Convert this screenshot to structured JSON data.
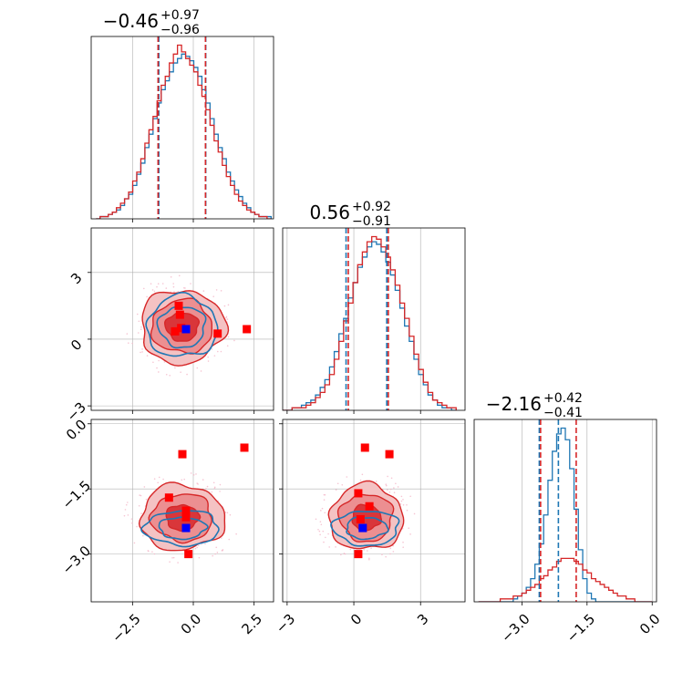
{
  "chart_data": {
    "type": "corner",
    "colors": {
      "series_a": "#1f77b4",
      "series_b": "#d62728",
      "markers_a": "#0000ff",
      "markers_b": "#ff0000",
      "grid": "#b0b0b0"
    },
    "parameters": [
      {
        "title": {
          "median": "−0.46",
          "plus": "+0.97",
          "minus": "−0.96"
        },
        "range": [
          -4.2,
          3.3
        ],
        "ticks": [
          -2.5,
          0.0,
          2.5
        ],
        "tick_labels": [
          "−2.5",
          "0.0",
          "2.5"
        ],
        "quantiles_a": [
          -1.42,
          0.51
        ],
        "quantiles_b": [
          -1.45,
          0.5
        ]
      },
      {
        "title": {
          "median": "0.56",
          "plus": "+0.92",
          "minus": "−0.91"
        },
        "range": [
          -3.2,
          5.0
        ],
        "ticks": [
          -3,
          0,
          3
        ],
        "tick_labels": [
          "−3",
          "0",
          "3"
        ],
        "quantiles_a": [
          -0.35,
          1.48
        ],
        "quantiles_b": [
          -0.25,
          1.55
        ]
      },
      {
        "title": {
          "median": "−2.16",
          "plus": "+0.42",
          "minus": "−0.41"
        },
        "range": [
          -4.1,
          0.1
        ],
        "ticks": [
          -3.0,
          -1.5,
          0.0
        ],
        "tick_labels": [
          "−3.0",
          "−1.5",
          "0.0"
        ],
        "quantiles_a": [
          -2.6,
          -2.16
        ],
        "quantiles_b": [
          -2.57,
          -1.75
        ]
      }
    ],
    "histograms": [
      {
        "bins": [
          -4.0,
          3.2
        ],
        "series_a": [
          0,
          1,
          1,
          2,
          3,
          4,
          6,
          9,
          11,
          15,
          20,
          25,
          32,
          38,
          45,
          52,
          58,
          62,
          66,
          70,
          72,
          74,
          73,
          71,
          68,
          64,
          58,
          52,
          45,
          38,
          32,
          27,
          21,
          17,
          13,
          10,
          7,
          5,
          3,
          2,
          1,
          1,
          1
        ],
        "series_b": [
          0,
          1,
          1,
          2,
          3,
          5,
          7,
          9,
          12,
          17,
          21,
          27,
          34,
          40,
          46,
          53,
          60,
          64,
          70,
          74,
          78,
          75,
          72,
          69,
          66,
          60,
          55,
          49,
          42,
          35,
          30,
          24,
          19,
          15,
          11,
          8,
          6,
          4,
          3,
          2,
          1,
          1,
          0
        ]
      },
      {
        "bins": [
          -3.2,
          4.6
        ],
        "series_a": [
          0,
          0,
          1,
          1,
          2,
          3,
          4,
          6,
          9,
          12,
          17,
          23,
          30,
          36,
          44,
          50,
          56,
          60,
          64,
          66,
          65,
          62,
          58,
          53,
          47,
          40,
          33,
          27,
          20,
          14,
          10,
          6,
          4,
          2,
          1,
          1,
          0
        ],
        "series_b": [
          0,
          0,
          1,
          1,
          1,
          2,
          3,
          5,
          7,
          10,
          14,
          20,
          27,
          35,
          42,
          50,
          57,
          62,
          66,
          68,
          67,
          64,
          60,
          55,
          49,
          42,
          36,
          29,
          22,
          16,
          11,
          7,
          4,
          3,
          2,
          1,
          1
        ]
      },
      {
        "bins": [
          -4.0,
          0.0
        ],
        "series_a": [
          0,
          0,
          0,
          0,
          0,
          0,
          0,
          0,
          1,
          2,
          3,
          5,
          8,
          13,
          20,
          30,
          42,
          52,
          58,
          60,
          56,
          46,
          32,
          18,
          8,
          3,
          1,
          0,
          0,
          0,
          0,
          0,
          0,
          0,
          0,
          0,
          0,
          0,
          0,
          0
        ],
        "series_b": [
          0,
          0,
          0,
          0,
          0,
          1,
          1,
          1,
          2,
          2,
          3,
          4,
          5,
          6,
          8,
          9,
          11,
          12,
          14,
          15,
          15,
          15,
          14,
          13,
          11,
          10,
          8,
          7,
          6,
          5,
          4,
          3,
          2,
          2,
          1,
          1,
          0,
          0,
          0,
          0
        ]
      }
    ],
    "pairs": [
      {
        "row": 1,
        "col": 0,
        "series_b_contours": {
          "center": [
            -0.46,
            0.56
          ],
          "sigma": [
            0.96,
            0.92
          ],
          "levels": [
            0.7,
            1.3,
            1.8
          ]
        },
        "series_a_contours": {
          "center": [
            -0.46,
            0.56
          ],
          "sigma": [
            0.96,
            0.92
          ],
          "levels": [
            1.0,
            1.5
          ]
        },
        "markers_b": [
          [
            -0.55,
            1.1
          ],
          [
            -0.75,
            0.35
          ],
          [
            1.0,
            0.25
          ],
          [
            2.2,
            0.45
          ],
          [
            -0.5,
            0.5
          ],
          [
            -0.6,
            1.5
          ]
        ],
        "markers_a": [
          [
            -0.3,
            0.45
          ]
        ]
      },
      {
        "row": 2,
        "col": 0,
        "series_b_contours": {
          "center": [
            -0.46,
            -2.16
          ],
          "sigma": [
            0.96,
            0.42
          ],
          "levels": [
            0.7,
            1.3,
            1.8
          ]
        },
        "series_a_contours": {
          "center": [
            -0.46,
            -2.4
          ],
          "sigma": [
            0.96,
            0.25
          ],
          "levels": [
            1.0,
            1.6
          ]
        },
        "markers_b": [
          [
            -0.45,
            -0.7
          ],
          [
            2.1,
            -0.55
          ],
          [
            -1.0,
            -1.7
          ],
          [
            -0.3,
            -2.0
          ],
          [
            -0.3,
            -2.15
          ],
          [
            -0.2,
            -3.0
          ]
        ],
        "markers_a": [
          [
            -0.3,
            -2.4
          ]
        ]
      },
      {
        "row": 2,
        "col": 1,
        "series_b_contours": {
          "center": [
            0.56,
            -2.16
          ],
          "sigma": [
            0.92,
            0.42
          ],
          "levels": [
            0.7,
            1.3,
            1.8
          ]
        },
        "series_a_contours": {
          "center": [
            0.56,
            -2.4
          ],
          "sigma": [
            0.92,
            0.25
          ],
          "levels": [
            1.0,
            1.6
          ]
        },
        "markers_b": [
          [
            0.5,
            -0.55
          ],
          [
            1.6,
            -0.7
          ],
          [
            0.2,
            -1.6
          ],
          [
            0.7,
            -1.9
          ],
          [
            0.3,
            -2.2
          ],
          [
            0.2,
            -3.0
          ]
        ],
        "markers_a": [
          [
            0.4,
            -2.4
          ]
        ]
      }
    ]
  }
}
